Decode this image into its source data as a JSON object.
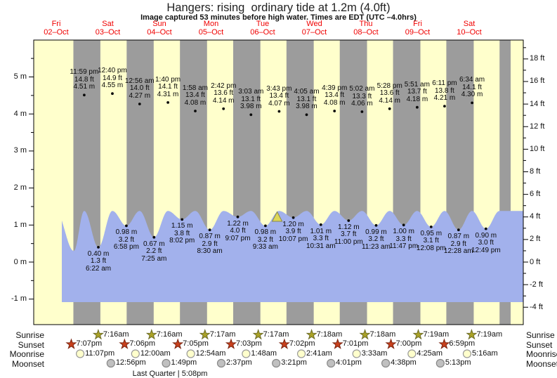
{
  "title": "Hangers: rising  ordinary tide at 1.2m (4.0ft)",
  "subtitle": "Image captured 53 minutes before high water. Times are EDT (UTC –4.0hrs)",
  "chart_data": {
    "type": "area",
    "x_days": [
      {
        "weekday": "Fri",
        "date": "02–Oct"
      },
      {
        "weekday": "Sat",
        "date": "03–Oct"
      },
      {
        "weekday": "Sun",
        "date": "04–Oct"
      },
      {
        "weekday": "Mon",
        "date": "05–Oct"
      },
      {
        "weekday": "Tue",
        "date": "06–Oct"
      },
      {
        "weekday": "Wed",
        "date": "07–Oct"
      },
      {
        "weekday": "Thu",
        "date": "08–Oct"
      },
      {
        "weekday": "Fri",
        "date": "09–Oct"
      },
      {
        "weekday": "Sat",
        "date": "10–Oct"
      }
    ],
    "y_axis_left_unit": "m",
    "y_axis_left_ticks": [
      5,
      4,
      3,
      2,
      1,
      0,
      -1
    ],
    "y_axis_right_unit": "ft",
    "y_axis_right_ticks": [
      18,
      16,
      14,
      12,
      10,
      8,
      6,
      4,
      2,
      0,
      -2,
      -4
    ],
    "tide_events": [
      {
        "day": 0,
        "time": "11:59 pm",
        "type": "high",
        "m": 4.51,
        "ft": 14.8
      },
      {
        "day": 1,
        "time": "6:22 am",
        "type": "low",
        "m": 0.4,
        "ft": 1.3
      },
      {
        "day": 1,
        "time": "12:40 pm",
        "type": "high",
        "m": 4.55,
        "ft": 14.9
      },
      {
        "day": 1,
        "time": "6:58 pm",
        "type": "low",
        "m": 0.98,
        "ft": 3.2
      },
      {
        "day": 2,
        "time": "12:56 am",
        "type": "high",
        "m": 4.27,
        "ft": 14.0
      },
      {
        "day": 2,
        "time": "7:25 am",
        "type": "low",
        "m": 0.67,
        "ft": 2.2
      },
      {
        "day": 2,
        "time": "1:40 pm",
        "type": "high",
        "m": 4.31,
        "ft": 14.1
      },
      {
        "day": 2,
        "time": "8:02 pm",
        "type": "low",
        "m": 1.15,
        "ft": 3.8
      },
      {
        "day": 3,
        "time": "1:58 am",
        "type": "high",
        "m": 4.08,
        "ft": 13.4
      },
      {
        "day": 3,
        "time": "8:30 am",
        "type": "low",
        "m": 0.87,
        "ft": 2.9
      },
      {
        "day": 3,
        "time": "2:42 pm",
        "type": "high",
        "m": 4.14,
        "ft": 13.6
      },
      {
        "day": 3,
        "time": "9:07 pm",
        "type": "low",
        "m": 1.22,
        "ft": 4.0
      },
      {
        "day": 4,
        "time": "3:03 am",
        "type": "high",
        "m": 3.98,
        "ft": 13.1
      },
      {
        "day": 4,
        "time": "9:33 am",
        "type": "low",
        "m": 0.98,
        "ft": 3.2
      },
      {
        "day": 4,
        "time": "3:43 pm",
        "type": "high",
        "m": 4.07,
        "ft": 13.4
      },
      {
        "day": 4,
        "time": "10:07 pm",
        "type": "low",
        "m": 1.2,
        "ft": 3.9
      },
      {
        "day": 5,
        "time": "4:05 am",
        "type": "high",
        "m": 3.98,
        "ft": 13.1
      },
      {
        "day": 5,
        "time": "10:31 am",
        "type": "low",
        "m": 1.01,
        "ft": 3.3
      },
      {
        "day": 5,
        "time": "4:39 pm",
        "type": "high",
        "m": 4.08,
        "ft": 13.4
      },
      {
        "day": 5,
        "time": "11:00 pm",
        "type": "low",
        "m": 1.12,
        "ft": 3.7
      },
      {
        "day": 6,
        "time": "5:02 am",
        "type": "high",
        "m": 4.06,
        "ft": 13.3
      },
      {
        "day": 6,
        "time": "11:23 am",
        "type": "low",
        "m": 0.99,
        "ft": 3.2
      },
      {
        "day": 6,
        "time": "5:28 pm",
        "type": "high",
        "m": 4.14,
        "ft": 13.6
      },
      {
        "day": 6,
        "time": "11:47 pm",
        "type": "low",
        "m": 1.0,
        "ft": 3.3
      },
      {
        "day": 7,
        "time": "5:51 am",
        "type": "high",
        "m": 4.18,
        "ft": 13.7
      },
      {
        "day": 7,
        "time": "12:08 pm",
        "type": "low",
        "m": 0.95,
        "ft": 3.1
      },
      {
        "day": 7,
        "time": "6:11 pm",
        "type": "high",
        "m": 4.21,
        "ft": 13.8
      },
      {
        "day": 8,
        "time": "12:28 am",
        "type": "low",
        "m": 0.87,
        "ft": 2.9
      },
      {
        "day": 8,
        "time": "6:34 am",
        "type": "high",
        "m": 4.3,
        "ft": 14.1
      },
      {
        "day": 8,
        "time": "12:49 pm",
        "type": "low",
        "m": 0.9,
        "ft": 3.0
      }
    ],
    "capture_marker": {
      "day": 4,
      "time": "2:50 pm",
      "height_m": 1.2
    }
  },
  "astro": {
    "rows": [
      {
        "label": "Sunrise",
        "icon": "sunrise-star",
        "entries": [
          {
            "day": 1,
            "time": "7:16am"
          },
          {
            "day": 2,
            "time": "7:16am"
          },
          {
            "day": 3,
            "time": "7:17am"
          },
          {
            "day": 4,
            "time": "7:17am"
          },
          {
            "day": 5,
            "time": "7:18am"
          },
          {
            "day": 6,
            "time": "7:18am"
          },
          {
            "day": 7,
            "time": "7:19am"
          },
          {
            "day": 8,
            "time": "7:19am"
          }
        ]
      },
      {
        "label": "Sunset",
        "icon": "sunset-star",
        "entries": [
          {
            "day": 0,
            "time": "7:07pm"
          },
          {
            "day": 1,
            "time": "7:06pm"
          },
          {
            "day": 2,
            "time": "7:05pm"
          },
          {
            "day": 3,
            "time": "7:03pm"
          },
          {
            "day": 4,
            "time": "7:02pm"
          },
          {
            "day": 5,
            "time": "7:01pm"
          },
          {
            "day": 6,
            "time": "7:00pm"
          },
          {
            "day": 7,
            "time": "6:59pm"
          }
        ]
      },
      {
        "label": "Moonrise",
        "icon": "moonrise-circle",
        "entries": [
          {
            "day": 0,
            "time": "11:07pm"
          },
          {
            "day": 2,
            "time": "12:00am"
          },
          {
            "day": 3,
            "time": "12:54am"
          },
          {
            "day": 4,
            "time": "1:48am"
          },
          {
            "day": 5,
            "time": "2:41am"
          },
          {
            "day": 6,
            "time": "3:33am"
          },
          {
            "day": 7,
            "time": "4:25am"
          },
          {
            "day": 8,
            "time": "5:16am"
          }
        ]
      },
      {
        "label": "Moonset",
        "icon": "moonset-circle",
        "entries": [
          {
            "day": 1,
            "time": "12:56pm"
          },
          {
            "day": 2,
            "time": "1:49pm"
          },
          {
            "day": 3,
            "time": "2:37pm"
          },
          {
            "day": 4,
            "time": "3:21pm"
          },
          {
            "day": 5,
            "time": "4:01pm"
          },
          {
            "day": 6,
            "time": "4:38pm"
          },
          {
            "day": 7,
            "time": "5:13pm"
          }
        ]
      }
    ],
    "moon_phase": "Last Quarter | 5:08pm"
  },
  "colors": {
    "day_band": "#ffffcc",
    "night_band": "#9c9c9c",
    "water": "#a2b1ec",
    "date_label": "#f00000",
    "annotation_text": "#0a0a0a",
    "sunrise_star": "#aaa226",
    "sunset_star": "#c8401c",
    "moonrise_fill": "#ffffcc",
    "moonrise_stroke": "#999999",
    "moonset_fill": "#c0c0c0",
    "moonset_stroke": "#888888",
    "marker_fill": "#ded758",
    "marker_stroke": "#8a8a4a"
  }
}
